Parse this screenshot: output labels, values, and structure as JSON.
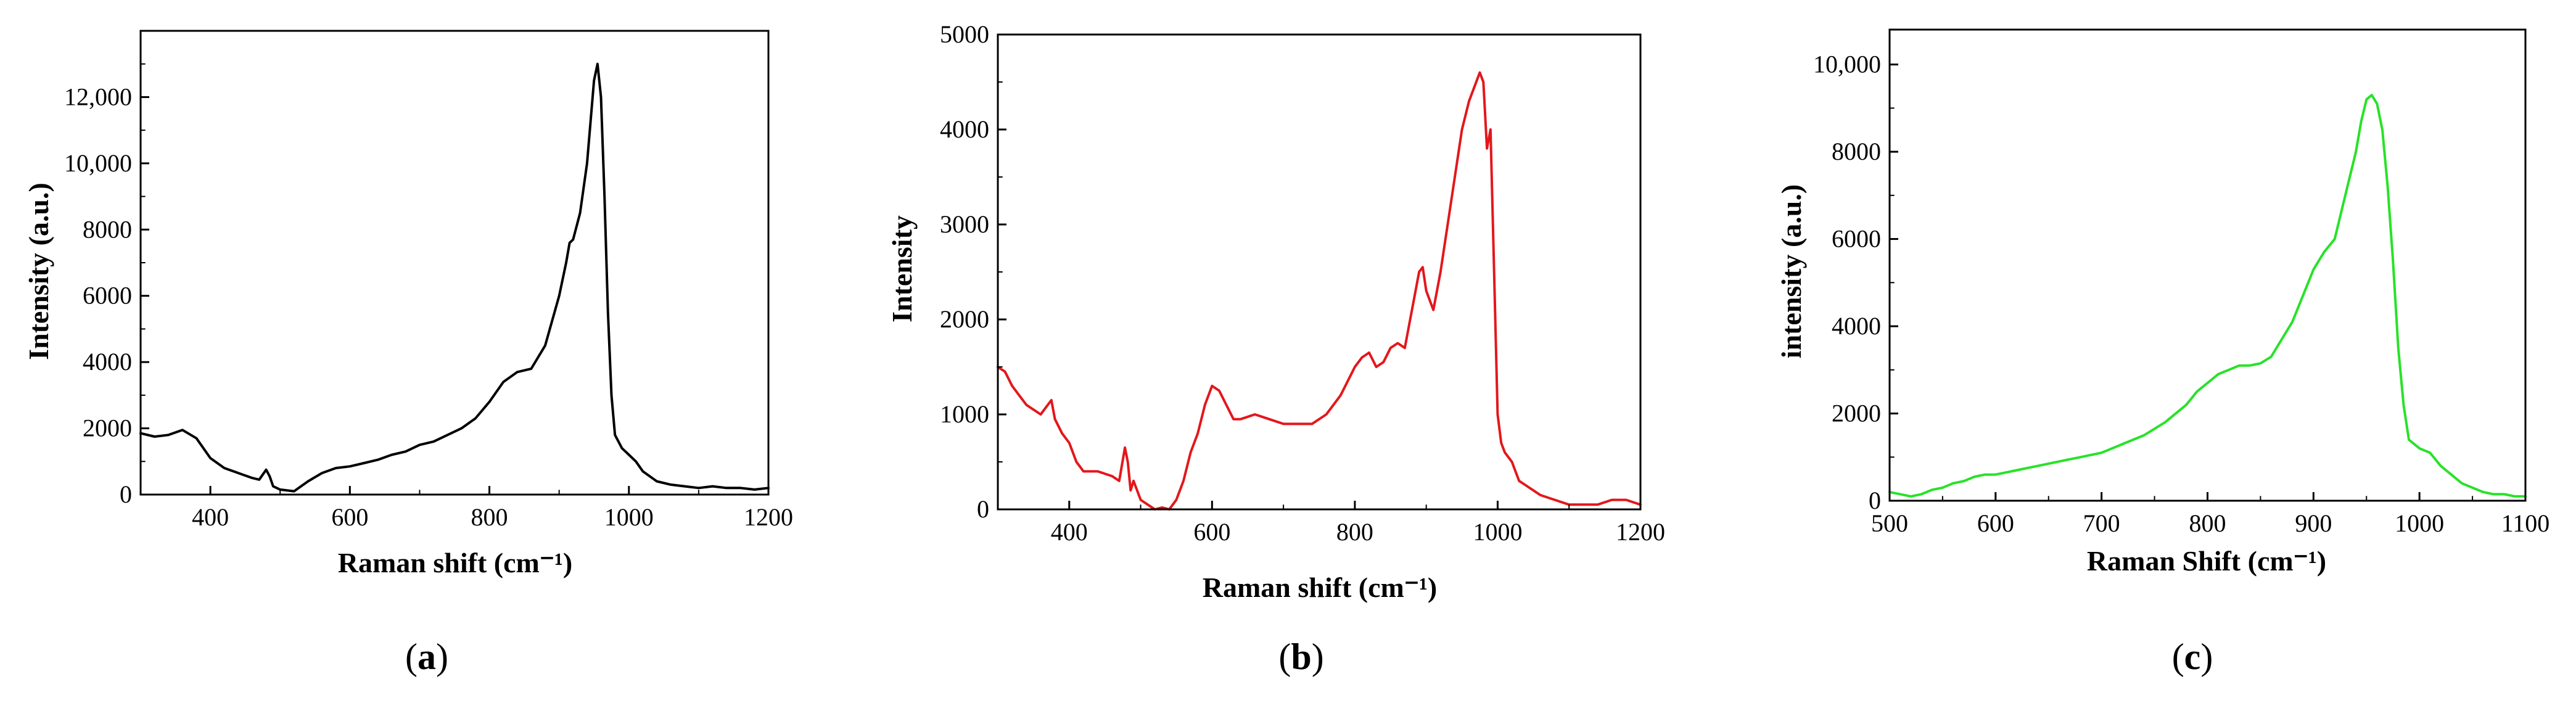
{
  "chart_data": [
    {
      "type": "line",
      "panel_label": "a",
      "xlabel": "Raman shift (cm⁻¹)",
      "ylabel": "Intensity (a.u.)",
      "xlim": [
        300,
        1200
      ],
      "ylim": [
        0,
        14000
      ],
      "xticks": [
        400,
        600,
        800,
        1000,
        1200
      ],
      "xtick_labels": [
        "400",
        "600",
        "800",
        "1000",
        "1200"
      ],
      "yticks": [
        0,
        2000,
        4000,
        6000,
        8000,
        10000,
        12000
      ],
      "ytick_labels": [
        "0",
        "2000",
        "4000",
        "6000",
        "8000",
        "10,000",
        "12,000"
      ],
      "color": "#000000",
      "series": [
        {
          "x": [
            300,
            320,
            340,
            360,
            380,
            400,
            420,
            440,
            460,
            470,
            480,
            485,
            490,
            500,
            520,
            540,
            560,
            580,
            600,
            620,
            640,
            660,
            680,
            700,
            720,
            740,
            760,
            780,
            800,
            820,
            840,
            860,
            880,
            900,
            910,
            915,
            920,
            930,
            940,
            950,
            955,
            960,
            965,
            970,
            975,
            980,
            990,
            1000,
            1010,
            1020,
            1040,
            1060,
            1080,
            1100,
            1120,
            1140,
            1160,
            1180,
            1200
          ],
          "y": [
            1850,
            1750,
            1800,
            1950,
            1700,
            1100,
            800,
            650,
            500,
            450,
            750,
            550,
            250,
            150,
            100,
            400,
            650,
            800,
            850,
            950,
            1050,
            1200,
            1300,
            1500,
            1600,
            1800,
            2000,
            2300,
            2800,
            3400,
            3700,
            3800,
            4500,
            6000,
            7000,
            7600,
            7700,
            8500,
            10000,
            12500,
            13000,
            12000,
            9000,
            5500,
            3000,
            1800,
            1400,
            1200,
            1000,
            700,
            400,
            300,
            250,
            200,
            250,
            200,
            200,
            150,
            200
          ]
        }
      ]
    },
    {
      "type": "line",
      "panel_label": "b",
      "xlabel": "Raman shift (cm⁻¹)",
      "ylabel": "Intensity",
      "xlim": [
        300,
        1200
      ],
      "ylim": [
        0,
        5000
      ],
      "xticks": [
        400,
        600,
        800,
        1000,
        1200
      ],
      "xtick_labels": [
        "400",
        "600",
        "800",
        "1000",
        "1200"
      ],
      "yticks": [
        0,
        1000,
        2000,
        3000,
        4000,
        5000
      ],
      "ytick_labels": [
        "0",
        "1000",
        "2000",
        "3000",
        "4000",
        "5000"
      ],
      "color": "#e3171b",
      "series": [
        {
          "x": [
            300,
            310,
            320,
            330,
            340,
            350,
            360,
            370,
            375,
            380,
            390,
            400,
            410,
            420,
            440,
            460,
            470,
            478,
            482,
            486,
            490,
            500,
            510,
            520,
            530,
            540,
            550,
            560,
            570,
            580,
            590,
            600,
            610,
            620,
            630,
            640,
            660,
            680,
            700,
            720,
            740,
            760,
            780,
            800,
            810,
            820,
            830,
            840,
            850,
            860,
            870,
            880,
            890,
            895,
            900,
            910,
            920,
            930,
            940,
            950,
            960,
            970,
            975,
            980,
            985,
            990,
            995,
            1000,
            1005,
            1010,
            1020,
            1030,
            1040,
            1060,
            1080,
            1100,
            1120,
            1140,
            1160,
            1180,
            1200
          ],
          "y": [
            1500,
            1450,
            1300,
            1200,
            1100,
            1050,
            1000,
            1100,
            1150,
            950,
            800,
            700,
            500,
            400,
            400,
            350,
            300,
            650,
            500,
            200,
            300,
            100,
            50,
            0,
            20,
            0,
            100,
            300,
            600,
            800,
            1100,
            1300,
            1250,
            1100,
            950,
            950,
            1000,
            950,
            900,
            900,
            900,
            1000,
            1200,
            1500,
            1600,
            1650,
            1500,
            1550,
            1700,
            1750,
            1700,
            2100,
            2500,
            2550,
            2300,
            2100,
            2500,
            3000,
            3500,
            4000,
            4300,
            4500,
            4600,
            4500,
            3800,
            4000,
            2500,
            1000,
            700,
            600,
            500,
            300,
            250,
            150,
            100,
            50,
            50,
            50,
            100,
            100,
            50
          ]
        }
      ]
    },
    {
      "type": "line",
      "panel_label": "c",
      "xlabel": "Raman Shift (cm⁻¹)",
      "ylabel": "intensity (a.u.)",
      "xlim": [
        500,
        1100
      ],
      "ylim": [
        0,
        10800
      ],
      "xticks": [
        500,
        600,
        700,
        800,
        900,
        1000,
        1100
      ],
      "xtick_labels": [
        "500",
        "600",
        "700",
        "800",
        "900",
        "1000",
        "1100"
      ],
      "yticks": [
        0,
        2000,
        4000,
        6000,
        8000,
        10000
      ],
      "ytick_labels": [
        "0",
        "2000",
        "4000",
        "6000",
        "8000",
        "10,000"
      ],
      "color": "#27e227",
      "series": [
        {
          "x": [
            500,
            510,
            520,
            530,
            540,
            550,
            560,
            570,
            580,
            590,
            600,
            620,
            640,
            660,
            680,
            700,
            720,
            740,
            760,
            780,
            790,
            800,
            810,
            820,
            830,
            840,
            850,
            860,
            870,
            880,
            890,
            900,
            910,
            920,
            930,
            940,
            945,
            950,
            955,
            960,
            965,
            970,
            975,
            980,
            985,
            990,
            1000,
            1010,
            1020,
            1030,
            1040,
            1050,
            1060,
            1070,
            1080,
            1090,
            1100
          ],
          "y": [
            200,
            150,
            100,
            150,
            250,
            300,
            400,
            450,
            550,
            600,
            600,
            700,
            800,
            900,
            1000,
            1100,
            1300,
            1500,
            1800,
            2200,
            2500,
            2700,
            2900,
            3000,
            3100,
            3100,
            3150,
            3300,
            3700,
            4100,
            4700,
            5300,
            5700,
            6000,
            7000,
            8000,
            8700,
            9200,
            9300,
            9100,
            8500,
            7200,
            5500,
            3500,
            2200,
            1400,
            1200,
            1100,
            800,
            600,
            400,
            300,
            200,
            150,
            150,
            100,
            100
          ]
        }
      ]
    }
  ]
}
